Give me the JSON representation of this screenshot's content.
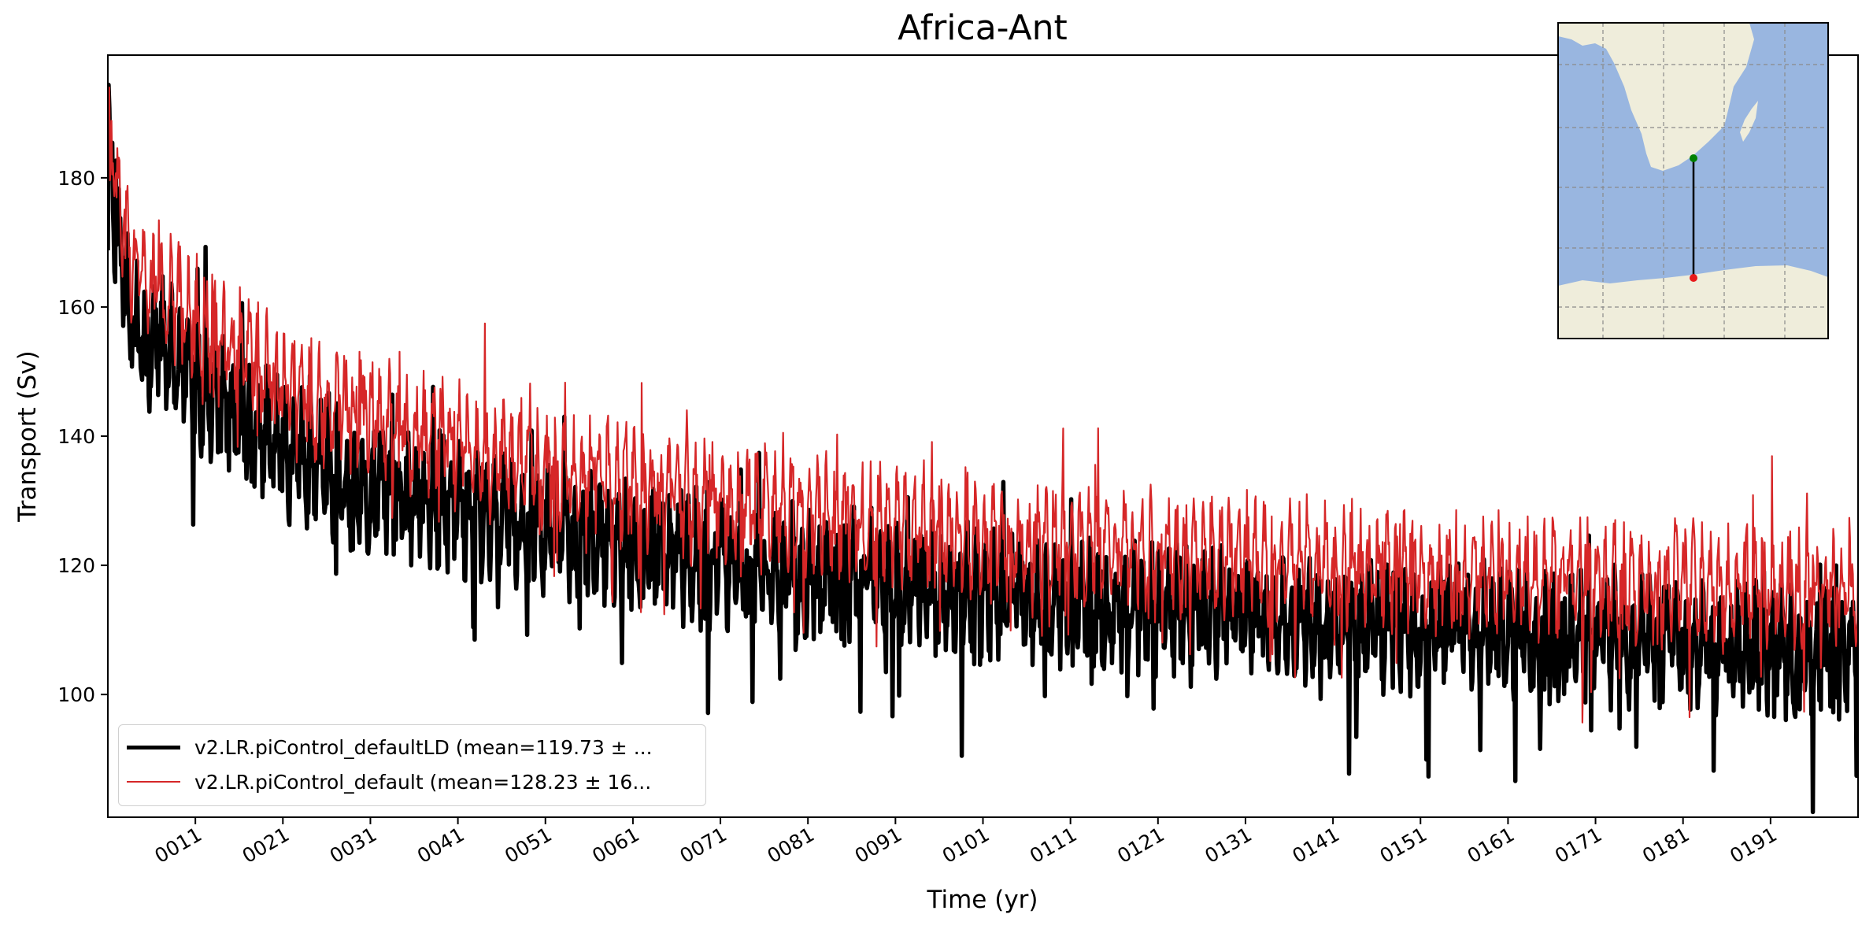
{
  "chart_data": {
    "type": "line",
    "title": "Africa-Ant",
    "xlabel": "Time (yr)",
    "ylabel": "Transport (Sv)",
    "xlim": [
      1,
      201
    ],
    "ylim": [
      81,
      199
    ],
    "x_tick_values": [
      11,
      21,
      31,
      41,
      51,
      61,
      71,
      81,
      91,
      101,
      111,
      121,
      131,
      141,
      151,
      161,
      171,
      181,
      191
    ],
    "x_tick_labels": [
      "0011",
      "0021",
      "0031",
      "0041",
      "0051",
      "0061",
      "0071",
      "0081",
      "0091",
      "0101",
      "0111",
      "0121",
      "0131",
      "0141",
      "0151",
      "0161",
      "0171",
      "0181",
      "0191"
    ],
    "y_tick_values": [
      100,
      120,
      140,
      160,
      180
    ],
    "y_tick_labels": [
      "100",
      "120",
      "140",
      "160",
      "180"
    ],
    "grid": false,
    "legend_position": "lower-left",
    "series": [
      {
        "name": "v2.LR.piControl_defaultLD (mean=119.73 ± ...",
        "color": "#000000",
        "style": "thick",
        "x": [
          1,
          2,
          3,
          4,
          5,
          6,
          8,
          10,
          12,
          15,
          18,
          21,
          25,
          30,
          35,
          40,
          45,
          50,
          55,
          60,
          65,
          70,
          75,
          80,
          85,
          90,
          95,
          100,
          105,
          110,
          115,
          120,
          125,
          130,
          135,
          140,
          145,
          150,
          155,
          160,
          165,
          170,
          175,
          180,
          185,
          190,
          195,
          201
        ],
        "values": [
          188,
          172,
          162,
          158,
          156,
          155,
          153,
          150,
          147,
          144,
          141,
          138,
          136,
          133,
          131,
          129,
          127,
          126,
          124,
          123,
          122,
          121,
          120,
          119,
          118,
          117,
          116,
          115.5,
          115,
          114,
          113.5,
          113,
          112.5,
          112,
          111.5,
          111,
          110.5,
          110,
          110,
          109.5,
          109,
          109,
          108.5,
          108,
          108,
          107.5,
          107,
          107
        ]
      },
      {
        "name": "v2.LR.piControl_default (mean=128.23 ± 16...",
        "color": "#d62728",
        "style": "thin",
        "x": [
          1,
          2,
          3,
          4,
          5,
          6,
          8,
          10,
          12,
          15,
          18,
          21,
          25,
          30,
          35,
          40,
          45,
          50,
          55,
          60,
          65,
          70,
          75,
          80,
          85,
          90,
          95,
          100,
          105,
          110,
          115,
          120,
          125,
          130,
          135,
          140,
          145,
          150,
          155,
          160,
          165,
          170,
          175,
          180,
          185,
          190,
          195,
          201
        ],
        "values": [
          188,
          178,
          170,
          167,
          165,
          163,
          161,
          159,
          157,
          154,
          151,
          148,
          146,
          143,
          141,
          139,
          137,
          135.5,
          134,
          132.5,
          131,
          130,
          129,
          128,
          127,
          126,
          125,
          124.5,
          124,
          123,
          122.5,
          122,
          121.5,
          121,
          120.5,
          120,
          119.5,
          119,
          118.5,
          118,
          118,
          117.5,
          117,
          117,
          116.5,
          116,
          116,
          116
        ]
      }
    ]
  },
  "inset_map": {
    "land_color": "#efeddb",
    "ocean_color": "#99b6e0",
    "start_point_color": "#008000",
    "end_point_color": "#e8191a"
  }
}
